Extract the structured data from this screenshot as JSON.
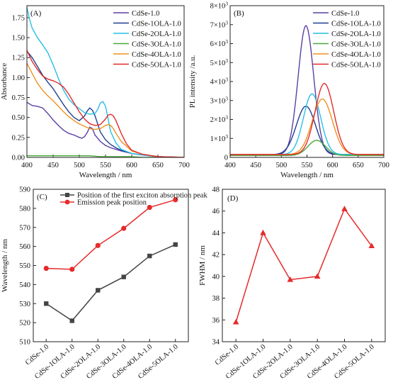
{
  "chart_data": [
    {
      "panel": "(A)",
      "type": "line",
      "xlabel": "Wavelength / nm",
      "ylabel": "Absorbance",
      "xlim": [
        400,
        700
      ],
      "ylim": [
        0.0,
        1.9
      ],
      "x_ticks": [
        400,
        450,
        500,
        550,
        600,
        650,
        700
      ],
      "y_ticks": [
        "0.00",
        "0.25",
        "0.50",
        "0.75",
        "1.00",
        "1.25",
        "1.50",
        "1.75"
      ],
      "legend_position": "top-right",
      "series": [
        {
          "name": "CdSe-1.0",
          "color": "#5b3fa3",
          "x": [
            400,
            410,
            420,
            430,
            440,
            450,
            460,
            470,
            480,
            490,
            500,
            505,
            510,
            515,
            520,
            525,
            530,
            540,
            550,
            560,
            570,
            580,
            600,
            620,
            650,
            700
          ],
          "y": [
            0.69,
            0.65,
            0.64,
            0.62,
            0.55,
            0.47,
            0.4,
            0.34,
            0.3,
            0.28,
            0.25,
            0.24,
            0.26,
            0.31,
            0.38,
            0.36,
            0.28,
            0.2,
            0.15,
            0.12,
            0.1,
            0.08,
            0.05,
            0.03,
            0.01,
            0.0
          ]
        },
        {
          "name": "CdSe-1OLA-1.0",
          "color": "#1f3f8f",
          "x": [
            400,
            410,
            420,
            430,
            440,
            450,
            460,
            470,
            480,
            490,
            500,
            510,
            515,
            520,
            525,
            530,
            535,
            540,
            550,
            560,
            570,
            580,
            600,
            620,
            650,
            700
          ],
          "y": [
            1.33,
            1.25,
            1.14,
            1.03,
            0.94,
            0.86,
            0.76,
            0.66,
            0.57,
            0.5,
            0.46,
            0.52,
            0.58,
            0.62,
            0.59,
            0.52,
            0.42,
            0.32,
            0.22,
            0.16,
            0.12,
            0.09,
            0.05,
            0.03,
            0.01,
            0.0
          ]
        },
        {
          "name": "CdSe-2OLA-1.0",
          "color": "#27bfe6",
          "x": [
            400,
            405,
            410,
            420,
            430,
            440,
            450,
            460,
            470,
            480,
            490,
            500,
            510,
            520,
            530,
            535,
            540,
            545,
            550,
            555,
            560,
            570,
            580,
            600,
            620,
            650,
            700
          ],
          "y": [
            1.88,
            1.73,
            1.62,
            1.5,
            1.41,
            1.31,
            1.16,
            0.99,
            0.84,
            0.73,
            0.66,
            0.61,
            0.56,
            0.54,
            0.55,
            0.6,
            0.68,
            0.7,
            0.64,
            0.48,
            0.32,
            0.18,
            0.1,
            0.05,
            0.03,
            0.01,
            0.0
          ]
        },
        {
          "name": "CdSe-3OLA-1.0",
          "color": "#4aa83a",
          "x": [
            400,
            420,
            440,
            460,
            480,
            500,
            520,
            540,
            560,
            580,
            600,
            620,
            650,
            700
          ],
          "y": [
            0.02,
            0.02,
            0.02,
            0.02,
            0.02,
            0.02,
            0.02,
            0.01,
            0.01,
            0.01,
            0.01,
            0.0,
            0.0,
            0.0
          ]
        },
        {
          "name": "CdSe-4OLA-1.0",
          "color": "#f0901e",
          "x": [
            400,
            410,
            420,
            430,
            440,
            450,
            460,
            470,
            480,
            490,
            500,
            510,
            520,
            530,
            540,
            550,
            555,
            560,
            565,
            570,
            580,
            600,
            620,
            650,
            700
          ],
          "y": [
            1.18,
            1.05,
            0.93,
            0.84,
            0.77,
            0.71,
            0.64,
            0.57,
            0.51,
            0.46,
            0.42,
            0.39,
            0.36,
            0.35,
            0.36,
            0.4,
            0.41,
            0.4,
            0.36,
            0.3,
            0.2,
            0.08,
            0.04,
            0.01,
            0.0
          ]
        },
        {
          "name": "CdSe-5OLA-1.0",
          "color": "#e52b2b",
          "x": [
            400,
            410,
            420,
            430,
            440,
            450,
            460,
            470,
            480,
            490,
            500,
            510,
            520,
            530,
            540,
            550,
            555,
            560,
            565,
            570,
            575,
            580,
            590,
            600,
            620,
            650,
            700
          ],
          "y": [
            1.34,
            1.2,
            1.1,
            1.02,
            0.98,
            0.96,
            0.93,
            0.88,
            0.79,
            0.68,
            0.57,
            0.48,
            0.42,
            0.4,
            0.41,
            0.48,
            0.53,
            0.54,
            0.52,
            0.46,
            0.38,
            0.3,
            0.17,
            0.09,
            0.04,
            0.01,
            0.0
          ]
        }
      ]
    },
    {
      "panel": "(B)",
      "type": "line",
      "xlabel": "Wavelength / nm",
      "ylabel": "PL intensity /a.u.",
      "xlim": [
        400,
        700
      ],
      "ylim": [
        0,
        8000
      ],
      "x_ticks": [
        400,
        450,
        500,
        550,
        600,
        650,
        700
      ],
      "y_ticks": [
        {
          "v": 0,
          "mant": "0",
          "exp": ""
        },
        {
          "v": 1000,
          "mant": "1×10",
          "exp": "3"
        },
        {
          "v": 2000,
          "mant": "2×10",
          "exp": "3"
        },
        {
          "v": 3000,
          "mant": "3×10",
          "exp": "3"
        },
        {
          "v": 4000,
          "mant": "4×10",
          "exp": "3"
        },
        {
          "v": 5000,
          "mant": "5×10",
          "exp": "3"
        },
        {
          "v": 6000,
          "mant": "6×10",
          "exp": "3"
        },
        {
          "v": 7000,
          "mant": "7×10",
          "exp": "3"
        },
        {
          "v": 8000,
          "mant": "8×10",
          "exp": "3"
        }
      ],
      "legend_position": "top-right",
      "series": [
        {
          "name": "CdSe-1.0",
          "color": "#5b3fa3",
          "peak_x": 548,
          "peak_y": 6950,
          "fwhm": 35.8,
          "base": 150
        },
        {
          "name": "CdSe-1OLA-1.0",
          "color": "#1f3f8f",
          "peak_x": 548,
          "peak_y": 2700,
          "fwhm": 44.0,
          "base": 150
        },
        {
          "name": "CdSe-2OLA-1.0",
          "color": "#27bfe6",
          "peak_x": 560,
          "peak_y": 3350,
          "fwhm": 39.7,
          "base": 150
        },
        {
          "name": "CdSe-3OLA-1.0",
          "color": "#4aa83a",
          "peak_x": 569,
          "peak_y": 900,
          "fwhm": 40.0,
          "base": 100
        },
        {
          "name": "CdSe-4OLA-1.0",
          "color": "#f0901e",
          "peak_x": 580,
          "peak_y": 3080,
          "fwhm": 46.2,
          "base": 150
        },
        {
          "name": "CdSe-5OLA-1.0",
          "color": "#e52b2b",
          "peak_x": 584,
          "peak_y": 3900,
          "fwhm": 42.8,
          "base": 150
        }
      ]
    },
    {
      "panel": "(C)",
      "type": "line",
      "xlabel": "",
      "ylabel": "Wavelength / nm",
      "ylim": [
        510,
        590
      ],
      "y_ticks": [
        510,
        520,
        530,
        540,
        550,
        560,
        570,
        580,
        590
      ],
      "categories": [
        "CdSe-1.0",
        "CdSe-1OLA-1.0",
        "CdSe-2OLA-1.0",
        "CdSe-3OLA-1.0",
        "CdSe-4OLA-1.0",
        "CdSe-5OLA-1.0"
      ],
      "legend_position": "top-left",
      "series": [
        {
          "name": "Position of the first exciton absorption peak",
          "color": "#444444",
          "marker": "square",
          "values": [
            530,
            521,
            537,
            544,
            555,
            561
          ]
        },
        {
          "name": "Emission peak position",
          "color": "#e52b2b",
          "marker": "circle",
          "values": [
            548.5,
            548,
            560.5,
            569.5,
            580.5,
            584.5
          ]
        }
      ]
    },
    {
      "panel": "(D)",
      "type": "line",
      "xlabel": "",
      "ylabel": "FWHM / nm",
      "ylim": [
        34,
        48
      ],
      "y_ticks": [
        34,
        36,
        38,
        40,
        42,
        44,
        46,
        48
      ],
      "categories": [
        "CdSe-1.0",
        "CdSe-1OLA-1.0",
        "CdSe-2OLA-1.0",
        "CdSe-3OLA-1.0",
        "CdSe-4OLA-1.0",
        "CdSe-5OLA-1.0"
      ],
      "series": [
        {
          "name": "",
          "color": "#e52b2b",
          "marker": "triangle",
          "values": [
            35.8,
            44.0,
            39.7,
            40.0,
            46.2,
            42.8
          ]
        }
      ]
    }
  ]
}
